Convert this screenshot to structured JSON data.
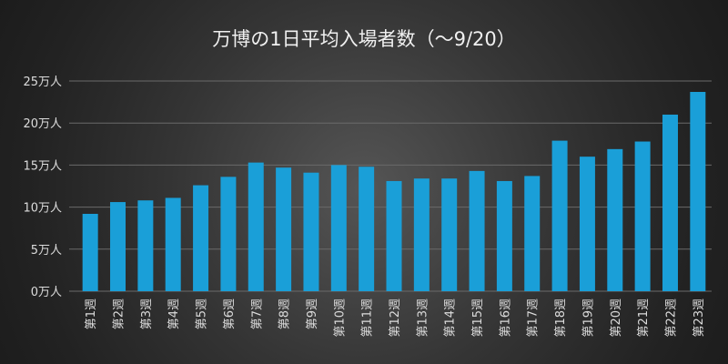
{
  "chart_data": {
    "type": "bar",
    "title": "万博の1日平均入場者数（～9/20）",
    "xlabel": "",
    "ylabel": "",
    "ylim": [
      0,
      25
    ],
    "yticks": [
      0,
      5,
      10,
      15,
      20,
      25
    ],
    "ytick_labels": [
      "0万人",
      "5万人",
      "10万人",
      "15万人",
      "20万人",
      "25万人"
    ],
    "grid": true,
    "bar_color": "#1a9fd8",
    "categories": [
      "第1週",
      "第2週",
      "第3週",
      "第4週",
      "第5週",
      "第6週",
      "第7週",
      "第8週",
      "第9週",
      "第10週",
      "第11週",
      "第12週",
      "第13週",
      "第14週",
      "第15週",
      "第16週",
      "第17週",
      "第18週",
      "第19週",
      "第20週",
      "第21週",
      "第22週",
      "第23週"
    ],
    "values": [
      9.2,
      10.6,
      10.8,
      11.1,
      12.6,
      13.6,
      15.3,
      14.7,
      14.1,
      15.0,
      14.8,
      13.1,
      13.4,
      13.4,
      14.3,
      13.1,
      13.7,
      17.9,
      16.0,
      16.9,
      17.8,
      21.0,
      23.7
    ]
  }
}
